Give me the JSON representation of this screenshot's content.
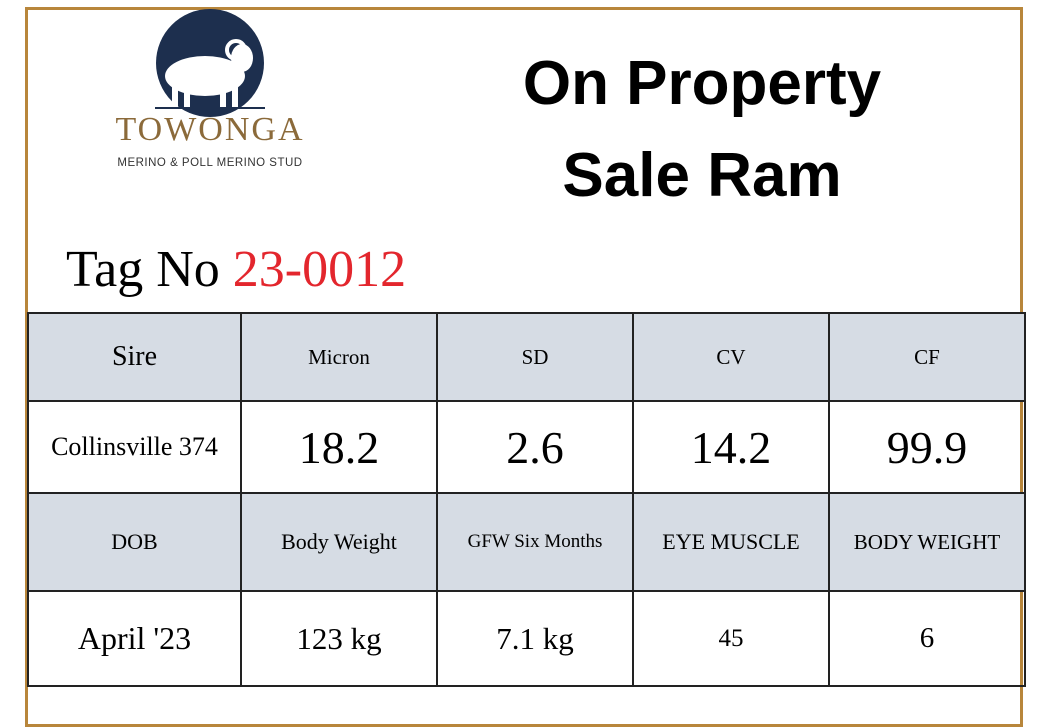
{
  "logo": {
    "name": "TOWONGA",
    "tagline": "MERINO & POLL MERINO STUD"
  },
  "title": {
    "lines": [
      "On Property",
      "Sale Ram"
    ]
  },
  "tag": {
    "label": "Tag No",
    "number": "23-0012"
  },
  "table": {
    "rows": [
      [
        "Sire",
        "Micron",
        "SD",
        "CV",
        "CF"
      ],
      [
        "Collinsville 374",
        "18.2",
        "2.6",
        "14.2",
        "99.9"
      ],
      [
        "DOB",
        "Body Weight",
        "GFW Six Months",
        "EYE MUSCLE",
        "BODY WEIGHT"
      ],
      [
        "April '23",
        "123 kg",
        "7.1 kg",
        "45",
        "6"
      ]
    ]
  }
}
